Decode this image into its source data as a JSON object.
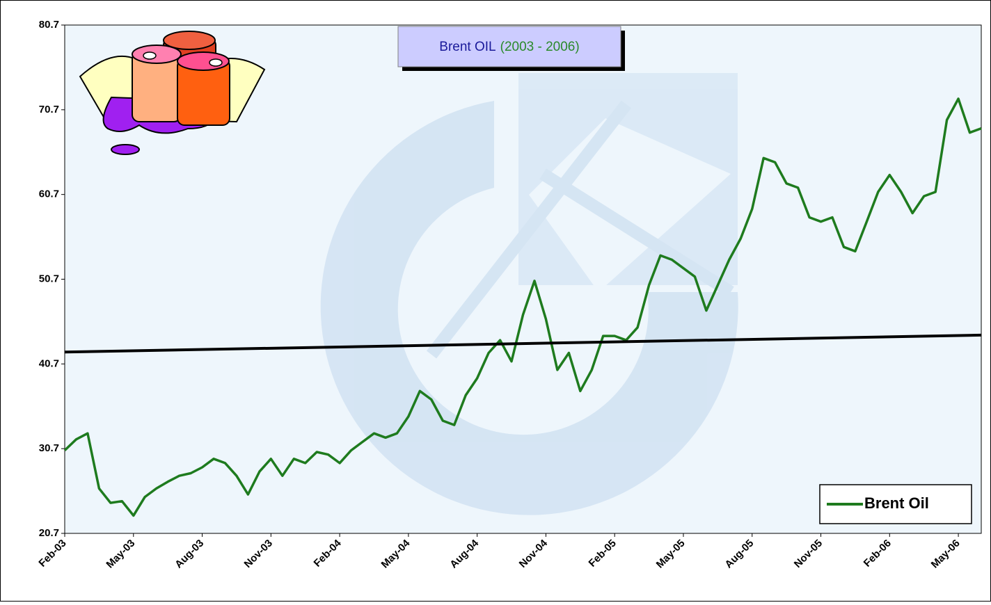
{
  "chart_data": {
    "type": "line",
    "title": "Brent OIL",
    "subtitle": "(2003 - 2006)",
    "categories": [
      "Feb-03",
      null,
      null,
      null,
      null,
      null,
      "May-03",
      null,
      null,
      null,
      null,
      null,
      "Aug-03",
      null,
      null,
      null,
      null,
      null,
      "Nov-03",
      null,
      null,
      null,
      null,
      null,
      "Feb-04",
      null,
      null,
      null,
      null,
      null,
      "May-04",
      null,
      null,
      null,
      null,
      null,
      "Aug-04",
      null,
      null,
      null,
      null,
      null,
      "Nov-04",
      null,
      null,
      null,
      null,
      null,
      "Feb-05",
      null,
      null,
      null,
      null,
      null,
      "May-05",
      null,
      null,
      null,
      null,
      null,
      "Aug-05",
      null,
      null,
      null,
      null,
      null,
      "Nov-05",
      null,
      null,
      null,
      null,
      null,
      "Feb-06",
      null,
      null,
      null,
      null,
      null,
      "May-06",
      null,
      null
    ],
    "series": [
      {
        "name": "Brent Oil",
        "color": "#1e7b1e",
        "values": [
          30.5,
          31.8,
          32.5,
          26,
          24.3,
          24.5,
          22.8,
          25,
          26,
          26.8,
          27.5,
          27.8,
          28.5,
          29.5,
          29,
          27.5,
          25.3,
          28,
          29.5,
          27.5,
          29.5,
          29,
          30.3,
          30,
          29,
          30.5,
          31.5,
          32.5,
          32,
          32.5,
          34.5,
          37.5,
          36.5,
          34,
          33.5,
          37,
          39,
          42,
          43.5,
          41,
          46.5,
          50.5,
          46,
          40,
          42,
          37.5,
          40,
          44,
          44,
          43.5,
          45,
          50,
          53.5,
          53,
          52,
          51,
          47,
          50,
          53,
          55.5,
          59,
          65,
          64.5,
          62,
          61.5,
          58,
          57.5,
          58,
          54.5,
          54,
          57.5,
          61,
          63,
          61,
          58.5,
          60.5,
          61,
          69.5,
          72,
          68,
          68.5
        ]
      }
    ],
    "trendline": {
      "color": "#000000",
      "values": [
        42.1,
        44.1
      ]
    },
    "ylim": [
      20.7,
      80.7
    ],
    "yticks": [
      20.7,
      30.7,
      40.7,
      50.7,
      60.7,
      70.7,
      80.7
    ],
    "grid": false,
    "legend": "lower right"
  }
}
